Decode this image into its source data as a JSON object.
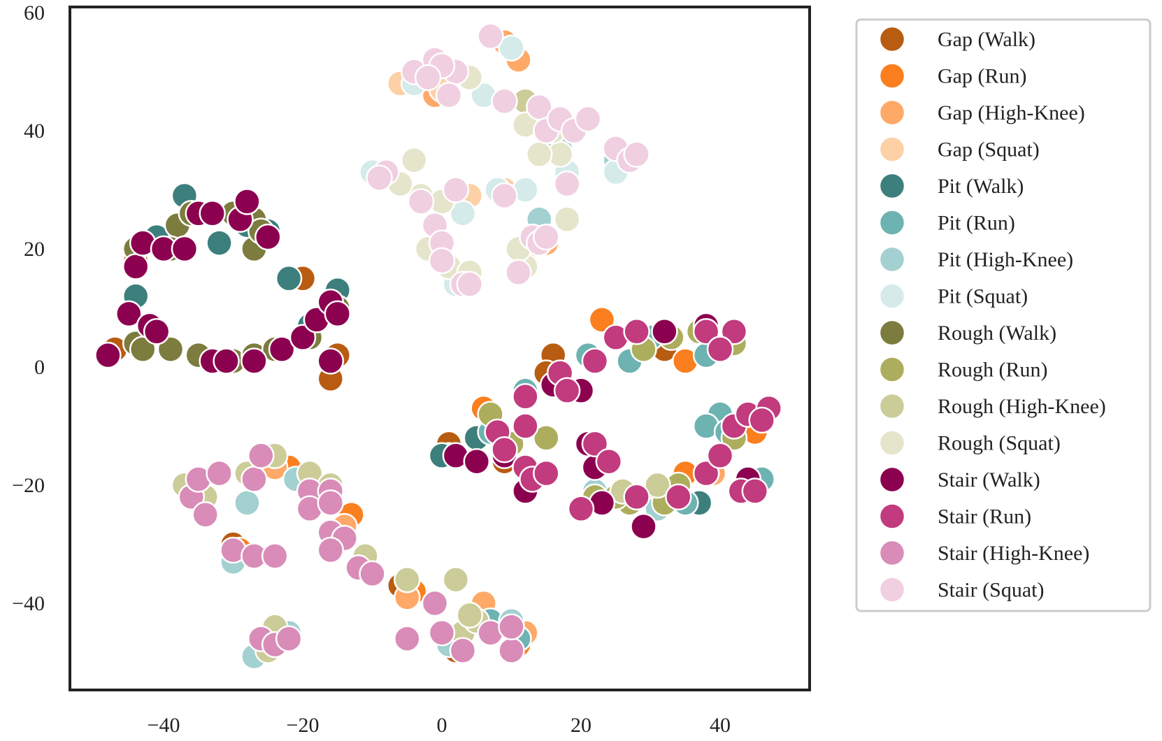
{
  "chart_data": {
    "type": "scatter",
    "title": "",
    "xlabel": "",
    "ylabel": "",
    "xlim": [
      -53,
      53
    ],
    "ylim": [
      -55,
      61
    ],
    "xticks": [
      -40,
      -20,
      0,
      20,
      40
    ],
    "yticks": [
      -40,
      -20,
      0,
      20,
      40,
      60
    ],
    "xtick_labels": [
      "−40",
      "−20",
      "0",
      "20",
      "40"
    ],
    "ytick_labels": [
      "−40",
      "−20",
      "0",
      "20",
      "40",
      "60"
    ],
    "grid": false,
    "legend_position": "outside-right",
    "series": [
      {
        "name": "Gap (Walk)",
        "color": "#b85c12",
        "points": [
          [
            -48,
            2
          ],
          [
            -47,
            3
          ],
          [
            -44,
            18
          ],
          [
            -20,
            15
          ],
          [
            -15,
            2
          ],
          [
            -16,
            -2
          ],
          [
            1,
            -13
          ],
          [
            16,
            2
          ],
          [
            15,
            -1
          ],
          [
            9,
            -16
          ],
          [
            -30,
            -30
          ],
          [
            -6,
            -37
          ],
          [
            2,
            -48
          ],
          [
            32,
            3
          ],
          [
            44,
            -20
          ]
        ]
      },
      {
        "name": "Gap (Run)",
        "color": "#fb7f1f",
        "points": [
          [
            23,
            8
          ],
          [
            35,
            1
          ],
          [
            45,
            -11
          ],
          [
            35,
            -18
          ],
          [
            20,
            -24
          ],
          [
            6,
            -7
          ],
          [
            1,
            -15
          ],
          [
            -4,
            -38
          ],
          [
            4,
            -42
          ],
          [
            11,
            -47
          ],
          [
            -29,
            -31
          ],
          [
            -22,
            -17
          ],
          [
            -13,
            -25
          ],
          [
            46,
            -8
          ]
        ]
      },
      {
        "name": "Gap (High-Knee)",
        "color": "#fea968",
        "points": [
          [
            11,
            52
          ],
          [
            9,
            55
          ],
          [
            -1,
            46
          ],
          [
            -24,
            -17
          ],
          [
            -14,
            -27
          ],
          [
            -5,
            -39
          ],
          [
            6,
            -40
          ],
          [
            12,
            -45
          ],
          [
            15,
            21
          ],
          [
            29,
            -22
          ],
          [
            39,
            -18
          ]
        ]
      },
      {
        "name": "Gap (Squat)",
        "color": "#fdd0a6",
        "points": [
          [
            12,
            20
          ],
          [
            4,
            29
          ],
          [
            -6,
            48
          ],
          [
            0,
            47
          ],
          [
            9,
            30
          ]
        ]
      },
      {
        "name": "Pit (Walk)",
        "color": "#3c7f7c",
        "points": [
          [
            -37,
            29
          ],
          [
            -32,
            21
          ],
          [
            -22,
            15
          ],
          [
            -44,
            12
          ],
          [
            -15,
            13
          ],
          [
            -41,
            22
          ],
          [
            -19,
            7
          ],
          [
            0,
            -15
          ],
          [
            5,
            -12
          ],
          [
            16,
            -3
          ],
          [
            37,
            -23
          ],
          [
            44,
            -19
          ],
          [
            -28,
            24
          ],
          [
            -25,
            23
          ]
        ]
      },
      {
        "name": "Pit (Run)",
        "color": "#6db3b2",
        "points": [
          [
            38,
            2
          ],
          [
            30,
            5
          ],
          [
            21,
            2
          ],
          [
            27,
            1
          ],
          [
            12,
            -4
          ],
          [
            7,
            -11
          ],
          [
            40,
            -8
          ],
          [
            38,
            -10
          ],
          [
            35,
            -23
          ],
          [
            -17,
            -22
          ],
          [
            -24,
            -44
          ],
          [
            7,
            -43
          ],
          [
            11,
            -46
          ],
          [
            41,
            -11
          ],
          [
            46,
            -19
          ]
        ]
      },
      {
        "name": "Pit (High-Knee)",
        "color": "#a3d0d0",
        "points": [
          [
            -28,
            -23
          ],
          [
            -21,
            -19
          ],
          [
            -5,
            -36
          ],
          [
            -27,
            -49
          ],
          [
            -22,
            -45
          ],
          [
            -30,
            -33
          ],
          [
            31,
            -24
          ],
          [
            10,
            -43
          ],
          [
            14,
            25
          ],
          [
            17,
            37
          ],
          [
            25,
            35
          ],
          [
            22,
            -21
          ],
          [
            1,
            -47
          ]
        ]
      },
      {
        "name": "Pit (Squat)",
        "color": "#d4ebea",
        "points": [
          [
            10,
            54
          ],
          [
            6,
            46
          ],
          [
            -4,
            48
          ],
          [
            -10,
            33
          ],
          [
            2,
            14
          ],
          [
            3,
            26
          ],
          [
            12,
            30
          ],
          [
            18,
            33
          ],
          [
            25,
            33
          ],
          [
            8,
            30
          ],
          [
            15,
            22
          ],
          [
            -1,
            24
          ]
        ]
      },
      {
        "name": "Rough (Walk)",
        "color": "#7c7c3e",
        "points": [
          [
            -44,
            20
          ],
          [
            -38,
            24
          ],
          [
            -36,
            26
          ],
          [
            -30,
            26
          ],
          [
            -27,
            25
          ],
          [
            -27,
            20
          ],
          [
            -26,
            23
          ],
          [
            -39,
            20
          ],
          [
            -44,
            4
          ],
          [
            -42,
            7
          ],
          [
            -43,
            3
          ],
          [
            -39,
            3
          ],
          [
            -35,
            2
          ],
          [
            -30,
            1
          ],
          [
            -27,
            2
          ],
          [
            -24,
            3
          ],
          [
            -19,
            5
          ],
          [
            -18,
            8
          ],
          [
            -15,
            10
          ]
        ]
      },
      {
        "name": "Rough (Run)",
        "color": "#adad5e",
        "points": [
          [
            29,
            3
          ],
          [
            33,
            5
          ],
          [
            37,
            6
          ],
          [
            42,
            4
          ],
          [
            7,
            -8
          ],
          [
            15,
            -12
          ],
          [
            27,
            -23
          ],
          [
            32,
            -23
          ],
          [
            34,
            -20
          ],
          [
            38,
            -18
          ],
          [
            42,
            -12
          ],
          [
            44,
            -8
          ],
          [
            22,
            -22
          ],
          [
            10,
            -13
          ],
          [
            25,
            -22
          ]
        ]
      },
      {
        "name": "Rough (High-Knee)",
        "color": "#cccc99",
        "points": [
          [
            -37,
            -20
          ],
          [
            -34,
            -22
          ],
          [
            -28,
            -18
          ],
          [
            -24,
            -15
          ],
          [
            -19,
            -18
          ],
          [
            -16,
            -20
          ],
          [
            -11,
            -32
          ],
          [
            -5,
            -36
          ],
          [
            2,
            -36
          ],
          [
            3,
            -45
          ],
          [
            -24,
            -44
          ],
          [
            -25,
            -48
          ],
          [
            5,
            -43
          ],
          [
            4,
            -42
          ],
          [
            -26,
            -15
          ],
          [
            12,
            45
          ],
          [
            16,
            41
          ],
          [
            26,
            -21
          ],
          [
            31,
            -20
          ]
        ]
      },
      {
        "name": "Rough (Squat)",
        "color": "#e5e5cc",
        "points": [
          [
            4,
            49
          ],
          [
            -2,
            50
          ],
          [
            -4,
            35
          ],
          [
            -3,
            29
          ],
          [
            0,
            28
          ],
          [
            -2,
            20
          ],
          [
            1,
            17
          ],
          [
            4,
            16
          ],
          [
            12,
            17
          ],
          [
            11,
            20
          ],
          [
            18,
            25
          ],
          [
            17,
            36
          ],
          [
            14,
            36
          ],
          [
            12,
            41
          ],
          [
            16,
            40
          ],
          [
            -9,
            32
          ],
          [
            -6,
            31
          ]
        ]
      },
      {
        "name": "Stair (Walk)",
        "color": "#8c0050",
        "points": [
          [
            -48,
            2
          ],
          [
            -45,
            9
          ],
          [
            -42,
            7
          ],
          [
            -44,
            17
          ],
          [
            -43,
            21
          ],
          [
            -40,
            20
          ],
          [
            -37,
            20
          ],
          [
            -35,
            26
          ],
          [
            -33,
            26
          ],
          [
            -29,
            25
          ],
          [
            -28,
            28
          ],
          [
            -25,
            22
          ],
          [
            -33,
            1
          ],
          [
            -31,
            1
          ],
          [
            -27,
            1
          ],
          [
            -23,
            3
          ],
          [
            -20,
            5
          ],
          [
            -18,
            8
          ],
          [
            -16,
            11
          ],
          [
            -15,
            9
          ],
          [
            -16,
            1
          ],
          [
            2,
            -15
          ],
          [
            5,
            -16
          ],
          [
            9,
            -15
          ],
          [
            16,
            -3
          ],
          [
            20,
            -4
          ],
          [
            21,
            -13
          ],
          [
            22,
            -17
          ],
          [
            23,
            -23
          ],
          [
            29,
            -27
          ],
          [
            32,
            6
          ],
          [
            38,
            7
          ],
          [
            44,
            -19
          ],
          [
            -41,
            6
          ],
          [
            12,
            -21
          ]
        ]
      },
      {
        "name": "Stair (Run)",
        "color": "#c13b7e",
        "points": [
          [
            22,
            1
          ],
          [
            25,
            5
          ],
          [
            28,
            6
          ],
          [
            38,
            6
          ],
          [
            42,
            6
          ],
          [
            40,
            3
          ],
          [
            17,
            -1
          ],
          [
            18,
            -4
          ],
          [
            12,
            -5
          ],
          [
            8,
            -11
          ],
          [
            12,
            -10
          ],
          [
            9,
            -14
          ],
          [
            12,
            -17
          ],
          [
            13,
            -19
          ],
          [
            15,
            -18
          ],
          [
            22,
            -13
          ],
          [
            24,
            -16
          ],
          [
            28,
            -22
          ],
          [
            34,
            -22
          ],
          [
            38,
            -18
          ],
          [
            40,
            -15
          ],
          [
            42,
            -10
          ],
          [
            44,
            -8
          ],
          [
            47,
            -7
          ],
          [
            46,
            -9
          ],
          [
            43,
            -21
          ],
          [
            45,
            -21
          ],
          [
            20,
            -24
          ]
        ]
      },
      {
        "name": "Stair (High-Knee)",
        "color": "#d98cb8",
        "points": [
          [
            -36,
            -22
          ],
          [
            -35,
            -19
          ],
          [
            -34,
            -25
          ],
          [
            -32,
            -18
          ],
          [
            -27,
            -19
          ],
          [
            -26,
            -15
          ],
          [
            -19,
            -21
          ],
          [
            -19,
            -24
          ],
          [
            -16,
            -21
          ],
          [
            -16,
            -23
          ],
          [
            -16,
            -28
          ],
          [
            -14,
            -29
          ],
          [
            -16,
            -31
          ],
          [
            -12,
            -34
          ],
          [
            -10,
            -35
          ],
          [
            -30,
            -31
          ],
          [
            -27,
            -32
          ],
          [
            -24,
            -32
          ],
          [
            -26,
            -46
          ],
          [
            -24,
            -47
          ],
          [
            -22,
            -46
          ],
          [
            -5,
            -46
          ],
          [
            -1,
            -40
          ],
          [
            0,
            -45
          ],
          [
            3,
            -48
          ],
          [
            7,
            -45
          ],
          [
            10,
            -48
          ],
          [
            10,
            -44
          ]
        ]
      },
      {
        "name": "Stair (Squat)",
        "color": "#f0cfe1",
        "points": [
          [
            -4,
            50
          ],
          [
            -1,
            52
          ],
          [
            2,
            50
          ],
          [
            0,
            51
          ],
          [
            -2,
            49
          ],
          [
            1,
            46
          ],
          [
            7,
            56
          ],
          [
            9,
            45
          ],
          [
            14,
            44
          ],
          [
            15,
            40
          ],
          [
            17,
            42
          ],
          [
            19,
            40
          ],
          [
            21,
            42
          ],
          [
            25,
            37
          ],
          [
            27,
            35
          ],
          [
            28,
            36
          ],
          [
            18,
            31
          ],
          [
            9,
            29
          ],
          [
            -3,
            28
          ],
          [
            2,
            30
          ],
          [
            -8,
            33
          ],
          [
            -9,
            32
          ],
          [
            -1,
            24
          ],
          [
            0,
            21
          ],
          [
            0,
            18
          ],
          [
            3,
            14
          ],
          [
            4,
            14
          ],
          [
            11,
            16
          ],
          [
            13,
            22
          ],
          [
            14,
            21
          ],
          [
            15,
            22
          ]
        ]
      }
    ]
  }
}
